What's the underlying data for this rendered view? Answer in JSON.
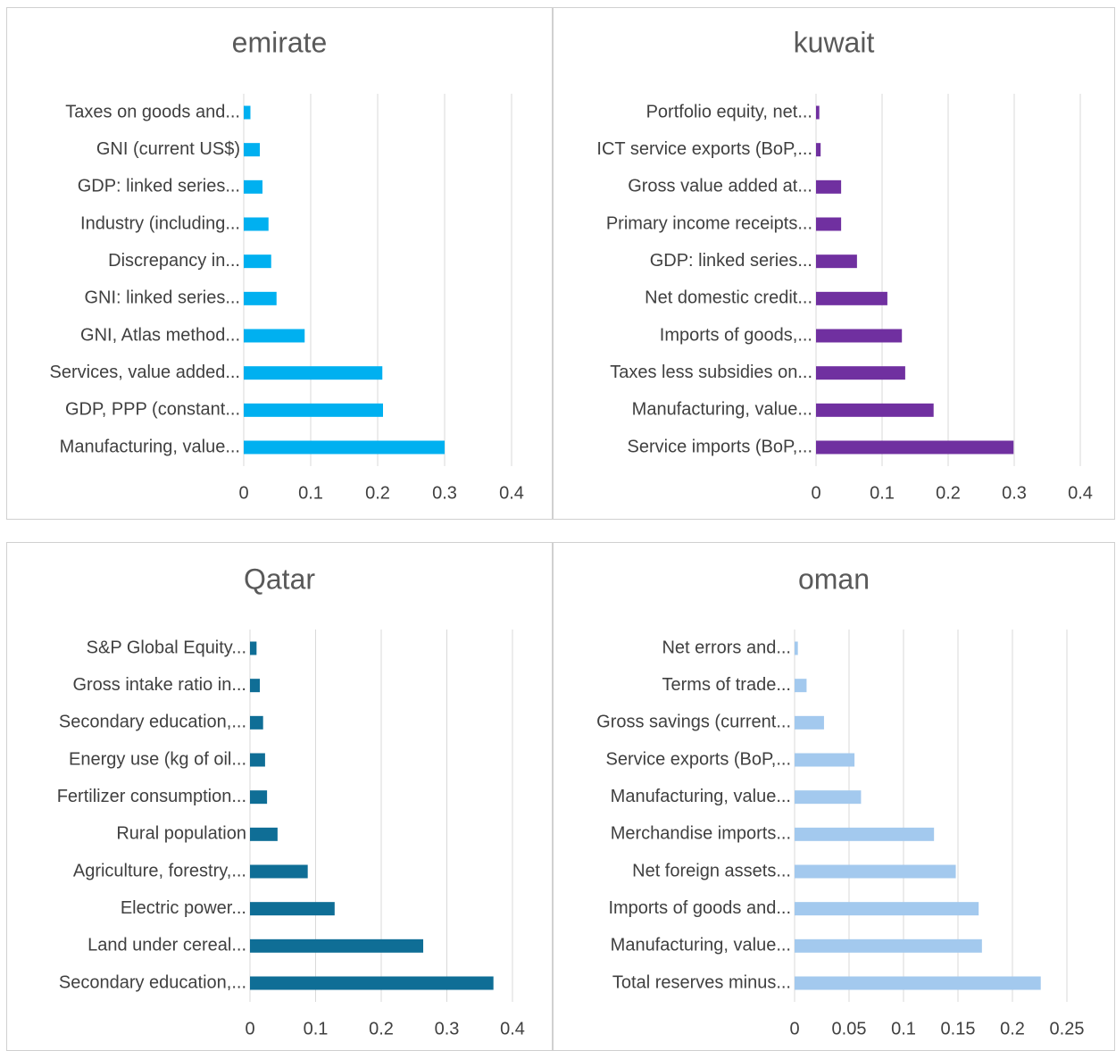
{
  "chart_data": [
    {
      "type": "bar",
      "title": "emirate",
      "color": "#00b0f0",
      "categories": [
        "Manufacturing, value...",
        "GDP, PPP (constant...",
        "Services, value added...",
        "GNI, Atlas method...",
        "GNI: linked series...",
        "Discrepancy in...",
        "Industry (including...",
        "GDP: linked series...",
        "GNI (current US$)",
        "Taxes on goods and..."
      ],
      "values": [
        0.3,
        0.208,
        0.207,
        0.091,
        0.049,
        0.041,
        0.037,
        0.028,
        0.024,
        0.01
      ],
      "xlim": [
        0,
        0.4
      ],
      "xticks": [
        0,
        0.1,
        0.2,
        0.3,
        0.4
      ],
      "grid": true
    },
    {
      "type": "bar",
      "title": "kuwait",
      "color": "#7030a0",
      "categories": [
        "Service imports (BoP,...",
        "Manufacturing, value...",
        "Taxes less subsidies on...",
        "Imports of goods,...",
        "Net domestic credit...",
        "GDP: linked series...",
        "Primary income receipts...",
        "Gross value added at...",
        "ICT service exports (BoP,...",
        "Portfolio equity, net..."
      ],
      "values": [
        0.299,
        0.178,
        0.135,
        0.13,
        0.108,
        0.062,
        0.038,
        0.038,
        0.007,
        0.005
      ],
      "xlim": [
        0,
        0.4
      ],
      "xticks": [
        0,
        0.1,
        0.2,
        0.3,
        0.4
      ],
      "grid": true
    },
    {
      "type": "bar",
      "title": "Qatar",
      "color": "#0f6e96",
      "categories": [
        "Secondary education,...",
        "Land under cereal...",
        "Electric power...",
        "Agriculture, forestry,...",
        "Rural population",
        "Fertilizer consumption...",
        "Energy use (kg of oil...",
        "Secondary education,...",
        "Gross intake ratio in...",
        "S&P Global Equity..."
      ],
      "values": [
        0.371,
        0.264,
        0.129,
        0.088,
        0.042,
        0.026,
        0.023,
        0.02,
        0.015,
        0.01
      ],
      "xlim": [
        0,
        0.4
      ],
      "xticks": [
        0,
        0.1,
        0.2,
        0.3,
        0.4
      ],
      "grid": true
    },
    {
      "type": "bar",
      "title": "oman",
      "color": "#a3c9ee",
      "categories": [
        "Total reserves minus...",
        "Manufacturing, value...",
        "Imports of goods and...",
        "Net foreign assets...",
        "Merchandise imports...",
        "Manufacturing, value...",
        "Service exports (BoP,...",
        "Gross savings (current...",
        "Terms of trade...",
        "Net errors and..."
      ],
      "values": [
        0.226,
        0.172,
        0.169,
        0.148,
        0.128,
        0.061,
        0.055,
        0.027,
        0.011,
        0.003
      ],
      "xlim": [
        0,
        0.25
      ],
      "xticks": [
        0,
        0.05,
        0.1,
        0.15,
        0.2,
        0.25
      ],
      "grid": true
    }
  ]
}
